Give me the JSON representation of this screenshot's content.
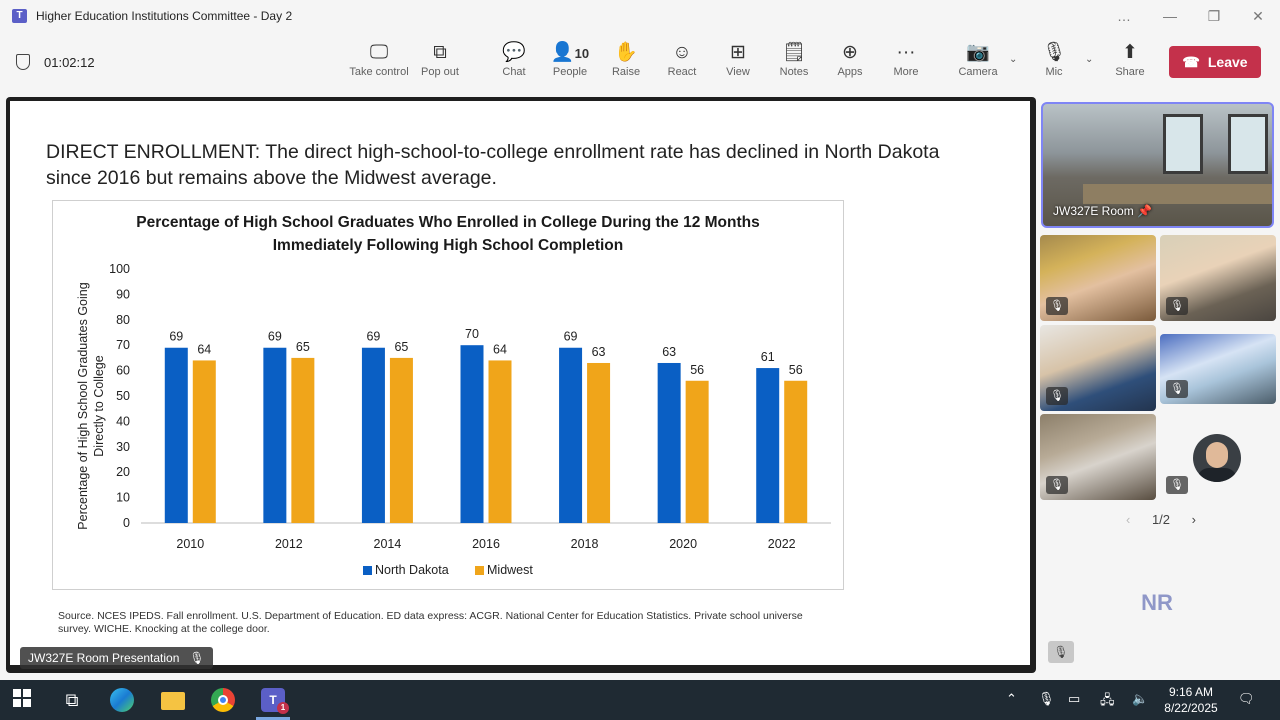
{
  "window": {
    "title": "Higher Education Institutions Committee - Day 2",
    "controls": [
      "…",
      "—",
      "❐",
      "✕"
    ]
  },
  "toolbar": {
    "timer": "01:02:12",
    "take_control": "Take control",
    "pop_out": "Pop out",
    "chat": "Chat",
    "people": "People",
    "people_count": "10",
    "raise": "Raise",
    "react": "React",
    "view": "View",
    "notes": "Notes",
    "apps": "Apps",
    "more": "More",
    "camera": "Camera",
    "mic": "Mic",
    "share": "Share",
    "leave": "Leave",
    "leave_color": "#c4314b"
  },
  "slide": {
    "heading": "DIRECT ENROLLMENT: The direct high-school-to-college enrollment rate has declined in North Dakota since 2016 but remains above the Midwest average.",
    "source": "Source. NCES IPEDS. Fall enrollment. U.S. Department of Education. ED data express: ACGR. National Center for Education Statistics. Private school universe survey. WICHE. Knocking at the college door.",
    "presenter_label": "JW327E Room Presentation"
  },
  "chart_data": {
    "type": "bar",
    "title": "Percentage of High School Graduates Who Enrolled in College During the 12 Months Immediately Following High School Completion",
    "ylabel": "Percentage of High School Graduates Going Directly to College",
    "xlabel": "",
    "categories": [
      "2010",
      "2012",
      "2014",
      "2016",
      "2018",
      "2020",
      "2022"
    ],
    "series": [
      {
        "name": "North Dakota",
        "values": [
          69,
          69,
          69,
          70,
          69,
          63,
          61
        ],
        "color": "#0a5fc4"
      },
      {
        "name": "Midwest",
        "values": [
          64,
          65,
          65,
          64,
          63,
          56,
          56
        ],
        "color": "#f0a51a"
      }
    ],
    "ylim": [
      0,
      100
    ],
    "yticks": [
      "0",
      "10",
      "20",
      "30",
      "40",
      "50",
      "60",
      "70",
      "80",
      "90",
      "100"
    ],
    "legend_position": "bottom",
    "grid": false
  },
  "participants": {
    "main_tile_name": "JW327E Room",
    "pager": "1/2",
    "initials": "NR"
  },
  "taskbar": {
    "time": "9:16 AM",
    "date": "8/22/2025",
    "teams_badge": "1"
  }
}
